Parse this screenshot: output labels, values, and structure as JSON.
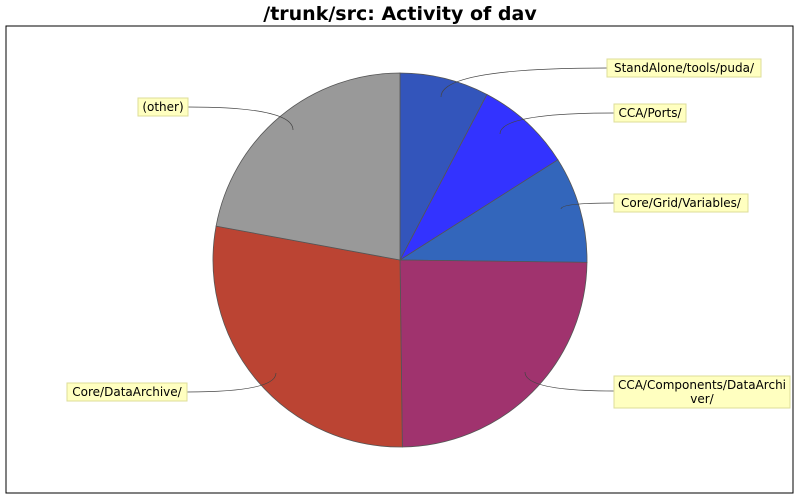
{
  "chart_data": {
    "type": "pie",
    "title": "/trunk/src: Activity of dav",
    "start_angle_deg": 90,
    "direction": "clockwise",
    "slices": [
      {
        "label": "StandAlone/tools/puda/",
        "value": 7.7,
        "color": "#3355bb"
      },
      {
        "label": "CCA/Ports/",
        "value": 8.3,
        "color": "#3333ff"
      },
      {
        "label": "Core/Grid/Variables/",
        "value": 9.2,
        "color": "#3366bb"
      },
      {
        "label": "CCA/Components/DataArchiver/",
        "value": 24.6,
        "color": "#a0336e"
      },
      {
        "label": "Core/DataArchive/",
        "value": 28.1,
        "color": "#bb4433"
      },
      {
        "label": "(other)",
        "value": 22.1,
        "color": "#999999"
      }
    ],
    "legend": "none"
  },
  "colors": {
    "background": "#ffffff",
    "plot_border": "#000000",
    "label_box_fill": "#ffffc0",
    "label_box_border": "#dddd99",
    "slice_outline": "#555555"
  }
}
